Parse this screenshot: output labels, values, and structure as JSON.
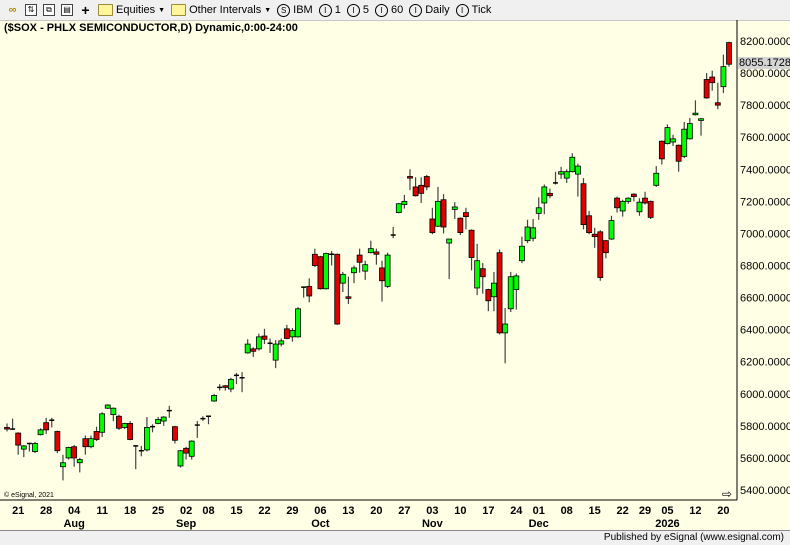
{
  "toolbar": {
    "equities_label": "Equities",
    "intervals_label": "Other Intervals",
    "symbol_label": "IBM",
    "interval_1": "1",
    "interval_5": "5",
    "interval_60": "60",
    "interval_daily": "Daily",
    "interval_tick": "Tick"
  },
  "chart_title": "($SOX - PHLX SEMICONDUCTOR,D) Dynamic,0:00-24:00",
  "copyright": "© eSignal, 2021",
  "footer": "Published by eSignal (www.esignal.com)",
  "colors": {
    "up": "#00ff00",
    "down": "#e00000",
    "background": "#ffffe6"
  },
  "chart_data": {
    "type": "candlestick",
    "title": "($SOX - PHLX SEMICONDUCTOR,D) Dynamic,0:00-24:00",
    "ylim": [
      5400,
      8200
    ],
    "y_ticks": [
      8200,
      8000,
      7800,
      7600,
      7400,
      7200,
      7000,
      6800,
      6600,
      6400,
      6200,
      6000,
      5800,
      5600,
      5400
    ],
    "y_tick_labels": [
      "8200.0000",
      "8000.0000",
      "7800.0000",
      "7600.0000",
      "7400.0000",
      "7200.0000",
      "7000.0000",
      "6800.0000",
      "6600.0000",
      "6400.0000",
      "6200.0000",
      "6000.0000",
      "5800.0000",
      "5600.0000",
      "5400.0000"
    ],
    "last_price": 8055.1728,
    "last_price_label": "8055.1728",
    "grid": false,
    "x_ticks": [
      {
        "label": "21",
        "date": "2025-07-21"
      },
      {
        "label": "28",
        "date": "2025-07-28"
      },
      {
        "label": "04",
        "date": "2025-08-04",
        "month": "Aug"
      },
      {
        "label": "11",
        "date": "2025-08-11"
      },
      {
        "label": "18",
        "date": "2025-08-18"
      },
      {
        "label": "25",
        "date": "2025-08-25"
      },
      {
        "label": "02",
        "date": "2025-09-02",
        "month": "Sep"
      },
      {
        "label": "08",
        "date": "2025-09-08"
      },
      {
        "label": "15",
        "date": "2025-09-15"
      },
      {
        "label": "22",
        "date": "2025-09-22"
      },
      {
        "label": "29",
        "date": "2025-09-29"
      },
      {
        "label": "06",
        "date": "2025-10-06",
        "month": "Oct"
      },
      {
        "label": "13",
        "date": "2025-10-13"
      },
      {
        "label": "20",
        "date": "2025-10-20"
      },
      {
        "label": "27",
        "date": "2025-10-27"
      },
      {
        "label": "03",
        "date": "2025-11-03",
        "month": "Nov"
      },
      {
        "label": "10",
        "date": "2025-11-10"
      },
      {
        "label": "17",
        "date": "2025-11-17"
      },
      {
        "label": "24",
        "date": "2025-11-24"
      },
      {
        "label": "01",
        "date": "2025-12-01",
        "month": "Dec"
      },
      {
        "label": "08",
        "date": "2025-12-08"
      },
      {
        "label": "15",
        "date": "2025-12-15"
      },
      {
        "label": "22",
        "date": "2025-12-22"
      },
      {
        "label": "29",
        "date": "2025-12-29"
      },
      {
        "label": "05",
        "date": "2026-01-05",
        "month": "2026"
      },
      {
        "label": "12",
        "date": "2026-01-12"
      },
      {
        "label": "20",
        "date": "2026-01-20"
      }
    ],
    "columns": [
      "date",
      "open",
      "high",
      "low",
      "close"
    ],
    "candles": [
      [
        "2025-07-17",
        5790,
        5815,
        5765,
        5780
      ],
      [
        "2025-07-18",
        5785,
        5845,
        5775,
        5780
      ],
      [
        "2025-07-21",
        5755,
        5760,
        5620,
        5680
      ],
      [
        "2025-07-22",
        5655,
        5680,
        5605,
        5675
      ],
      [
        "2025-07-23",
        5685,
        5695,
        5640,
        5690
      ],
      [
        "2025-07-24",
        5640,
        5700,
        5630,
        5690
      ],
      [
        "2025-07-25",
        5745,
        5785,
        5740,
        5775
      ],
      [
        "2025-07-28",
        5820,
        5850,
        5750,
        5775
      ],
      [
        "2025-07-29",
        5830,
        5850,
        5790,
        5835
      ],
      [
        "2025-07-30",
        5765,
        5770,
        5630,
        5645
      ],
      [
        "2025-07-31",
        5545,
        5620,
        5460,
        5570
      ],
      [
        "2025-08-01",
        5600,
        5670,
        5590,
        5665
      ],
      [
        "2025-08-04",
        5670,
        5680,
        5545,
        5600
      ],
      [
        "2025-08-05",
        5570,
        5600,
        5510,
        5590
      ],
      [
        "2025-08-06",
        5720,
        5740,
        5620,
        5670
      ],
      [
        "2025-08-07",
        5670,
        5740,
        5660,
        5720
      ],
      [
        "2025-08-08",
        5765,
        5795,
        5705,
        5715
      ],
      [
        "2025-08-11",
        5760,
        5885,
        5730,
        5875
      ],
      [
        "2025-08-12",
        5910,
        5935,
        5905,
        5930
      ],
      [
        "2025-08-13",
        5870,
        5915,
        5830,
        5910
      ],
      [
        "2025-08-14",
        5860,
        5870,
        5775,
        5785
      ],
      [
        "2025-08-15",
        5790,
        5820,
        5780,
        5815
      ],
      [
        "2025-08-18",
        5815,
        5830,
        5710,
        5715
      ],
      [
        "2025-08-19",
        5670,
        5680,
        5530,
        5675
      ],
      [
        "2025-08-20",
        5640,
        5675,
        5610,
        5645
      ],
      [
        "2025-08-21",
        5650,
        5855,
        5640,
        5790
      ],
      [
        "2025-08-22",
        5790,
        5810,
        5760,
        5795
      ],
      [
        "2025-08-25",
        5815,
        5855,
        5810,
        5840
      ],
      [
        "2025-08-26",
        5830,
        5860,
        5800,
        5855
      ],
      [
        "2025-08-27",
        5890,
        5925,
        5850,
        5895
      ],
      [
        "2025-08-28",
        5795,
        5800,
        5690,
        5710
      ],
      [
        "2025-08-29",
        5550,
        5650,
        5540,
        5645
      ],
      [
        "2025-09-02",
        5660,
        5670,
        5590,
        5630
      ],
      [
        "2025-09-03",
        5610,
        5710,
        5590,
        5705
      ],
      [
        "2025-09-04",
        5800,
        5830,
        5725,
        5805
      ],
      [
        "2025-09-05",
        5840,
        5860,
        5830,
        5845
      ],
      [
        "2025-09-08",
        5855,
        5865,
        5810,
        5860
      ],
      [
        "2025-09-09",
        5955,
        6000,
        5950,
        5990
      ],
      [
        "2025-09-10",
        6035,
        6060,
        6020,
        6040
      ],
      [
        "2025-09-11",
        6050,
        6055,
        6020,
        6040
      ],
      [
        "2025-09-12",
        6030,
        6100,
        6010,
        6090
      ],
      [
        "2025-09-15",
        6110,
        6130,
        6060,
        6115
      ],
      [
        "2025-09-16",
        6095,
        6135,
        6010,
        6100
      ],
      [
        "2025-09-17",
        6255,
        6340,
        6250,
        6310
      ],
      [
        "2025-09-18",
        6280,
        6290,
        6230,
        6265
      ],
      [
        "2025-09-19",
        6280,
        6375,
        6270,
        6355
      ],
      [
        "2025-09-22",
        6360,
        6405,
        6310,
        6340
      ],
      [
        "2025-09-23",
        6315,
        6345,
        6255,
        6315
      ],
      [
        "2025-09-24",
        6210,
        6335,
        6160,
        6310
      ],
      [
        "2025-09-25",
        6310,
        6345,
        6295,
        6330
      ],
      [
        "2025-09-26",
        6405,
        6430,
        6340,
        6345
      ],
      [
        "2025-09-29",
        6355,
        6410,
        6325,
        6395
      ],
      [
        "2025-09-30",
        6355,
        6540,
        6350,
        6530
      ],
      [
        "2025-10-01",
        6660,
        6670,
        6600,
        6665
      ],
      [
        "2025-10-02",
        6670,
        6720,
        6570,
        6610
      ],
      [
        "2025-10-03",
        6870,
        6905,
        6790,
        6800
      ],
      [
        "2025-10-06",
        6855,
        6860,
        6650,
        6655
      ],
      [
        "2025-10-07",
        6655,
        6880,
        6650,
        6875
      ],
      [
        "2025-10-08",
        6870,
        6890,
        6800,
        6870
      ],
      [
        "2025-10-09",
        6870,
        6875,
        6430,
        6435
      ],
      [
        "2025-10-10",
        6690,
        6760,
        6635,
        6745
      ],
      [
        "2025-10-13",
        6605,
        6730,
        6560,
        6595
      ],
      [
        "2025-10-14",
        6755,
        6800,
        6690,
        6785
      ],
      [
        "2025-10-15",
        6865,
        6905,
        6755,
        6820
      ],
      [
        "2025-10-16",
        6765,
        6830,
        6710,
        6805
      ],
      [
        "2025-10-17",
        6880,
        6955,
        6875,
        6905
      ],
      [
        "2025-10-20",
        6885,
        6905,
        6805,
        6870
      ],
      [
        "2025-10-21",
        6785,
        6830,
        6575,
        6705
      ],
      [
        "2025-10-22",
        6670,
        6880,
        6660,
        6865
      ],
      [
        "2025-10-23",
        6985,
        7040,
        6970,
        6990
      ],
      [
        "2025-10-24",
        7130,
        7190,
        7125,
        7185
      ],
      [
        "2025-10-27",
        7180,
        7240,
        7155,
        7200
      ],
      [
        "2025-10-28",
        7355,
        7400,
        7270,
        7345
      ],
      [
        "2025-10-29",
        7290,
        7350,
        7230,
        7235
      ],
      [
        "2025-10-30",
        7300,
        7350,
        7190,
        7250
      ],
      [
        "2025-10-31",
        7355,
        7365,
        7270,
        7290
      ],
      [
        "2025-11-03",
        7090,
        7160,
        6995,
        7005
      ],
      [
        "2025-11-04",
        7045,
        7290,
        7040,
        7200
      ],
      [
        "2025-11-05",
        7210,
        7245,
        7000,
        7040
      ],
      [
        "2025-11-06",
        6940,
        6965,
        6715,
        6965
      ],
      [
        "2025-11-07",
        7150,
        7195,
        7090,
        7165
      ],
      [
        "2025-11-10",
        7095,
        7100,
        6990,
        7005
      ],
      [
        "2025-11-11",
        7130,
        7160,
        7025,
        7105
      ],
      [
        "2025-11-12",
        7020,
        7025,
        6770,
        6850
      ],
      [
        "2025-11-13",
        6660,
        6935,
        6615,
        6830
      ],
      [
        "2025-11-14",
        6780,
        6815,
        6625,
        6730
      ],
      [
        "2025-11-17",
        6650,
        6655,
        6515,
        6580
      ],
      [
        "2025-11-18",
        6605,
        6760,
        6515,
        6690
      ],
      [
        "2025-11-19",
        6880,
        6900,
        6370,
        6380
      ],
      [
        "2025-11-20",
        6380,
        6535,
        6190,
        6435
      ],
      [
        "2025-11-21",
        6530,
        6760,
        6510,
        6730
      ],
      [
        "2025-11-24",
        6650,
        6750,
        6525,
        6735
      ],
      [
        "2025-11-25",
        6830,
        6980,
        6815,
        6920
      ],
      [
        "2025-11-26",
        6955,
        7085,
        6940,
        7040
      ],
      [
        "2025-11-28",
        6970,
        7090,
        6950,
        7035
      ],
      [
        "2025-12-01",
        7125,
        7225,
        7085,
        7160
      ],
      [
        "2025-12-02",
        7190,
        7305,
        7120,
        7290
      ],
      [
        "2025-12-03",
        7250,
        7280,
        7220,
        7235
      ],
      [
        "2025-12-04",
        7315,
        7385,
        7305,
        7315
      ],
      [
        "2025-12-05",
        7370,
        7415,
        7340,
        7385
      ],
      [
        "2025-12-08",
        7345,
        7400,
        7315,
        7385
      ],
      [
        "2025-12-09",
        7385,
        7500,
        7380,
        7475
      ],
      [
        "2025-12-10",
        7370,
        7435,
        7230,
        7420
      ],
      [
        "2025-12-11",
        7310,
        7345,
        7025,
        7055
      ],
      [
        "2025-12-12",
        7110,
        7140,
        6995,
        7005
      ],
      [
        "2025-12-15",
        6995,
        7035,
        6910,
        6980
      ],
      [
        "2025-12-16",
        7010,
        7020,
        6705,
        6725
      ],
      [
        "2025-12-17",
        6955,
        6960,
        6845,
        6880
      ],
      [
        "2025-12-18",
        6965,
        7110,
        6960,
        7080
      ],
      [
        "2025-12-19",
        7220,
        7230,
        7130,
        7160
      ],
      [
        "2025-12-22",
        7140,
        7210,
        7105,
        7200
      ],
      [
        "2025-12-23",
        7200,
        7225,
        7185,
        7220
      ],
      [
        "2025-12-24",
        7245,
        7250,
        7200,
        7230
      ],
      [
        "2025-12-26",
        7135,
        7220,
        7110,
        7195
      ],
      [
        "2025-12-29",
        7220,
        7260,
        7180,
        7190
      ],
      [
        "2025-12-30",
        7200,
        7205,
        7090,
        7100
      ],
      [
        "2025-12-31",
        7300,
        7420,
        7290,
        7375
      ],
      [
        "2026-01-02",
        7575,
        7580,
        7430,
        7465
      ],
      [
        "2026-01-05",
        7560,
        7680,
        7555,
        7660
      ],
      [
        "2026-01-06",
        7570,
        7615,
        7545,
        7590
      ],
      [
        "2026-01-07",
        7550,
        7555,
        7385,
        7450
      ],
      [
        "2026-01-08",
        7480,
        7695,
        7470,
        7650
      ],
      [
        "2026-01-09",
        7590,
        7720,
        7585,
        7685
      ],
      [
        "2026-01-12",
        7740,
        7830,
        7735,
        7750
      ],
      [
        "2026-01-13",
        7705,
        7720,
        7610,
        7715
      ],
      [
        "2026-01-14",
        7960,
        8000,
        7840,
        7845
      ],
      [
        "2026-01-15",
        7975,
        8015,
        7890,
        7940
      ],
      [
        "2026-01-16",
        7815,
        7940,
        7775,
        7800
      ],
      [
        "2026-01-20",
        7915,
        8115,
        7875,
        8040
      ],
      [
        "2026-01-21",
        8190,
        8195,
        8040,
        8055.1728
      ]
    ]
  }
}
